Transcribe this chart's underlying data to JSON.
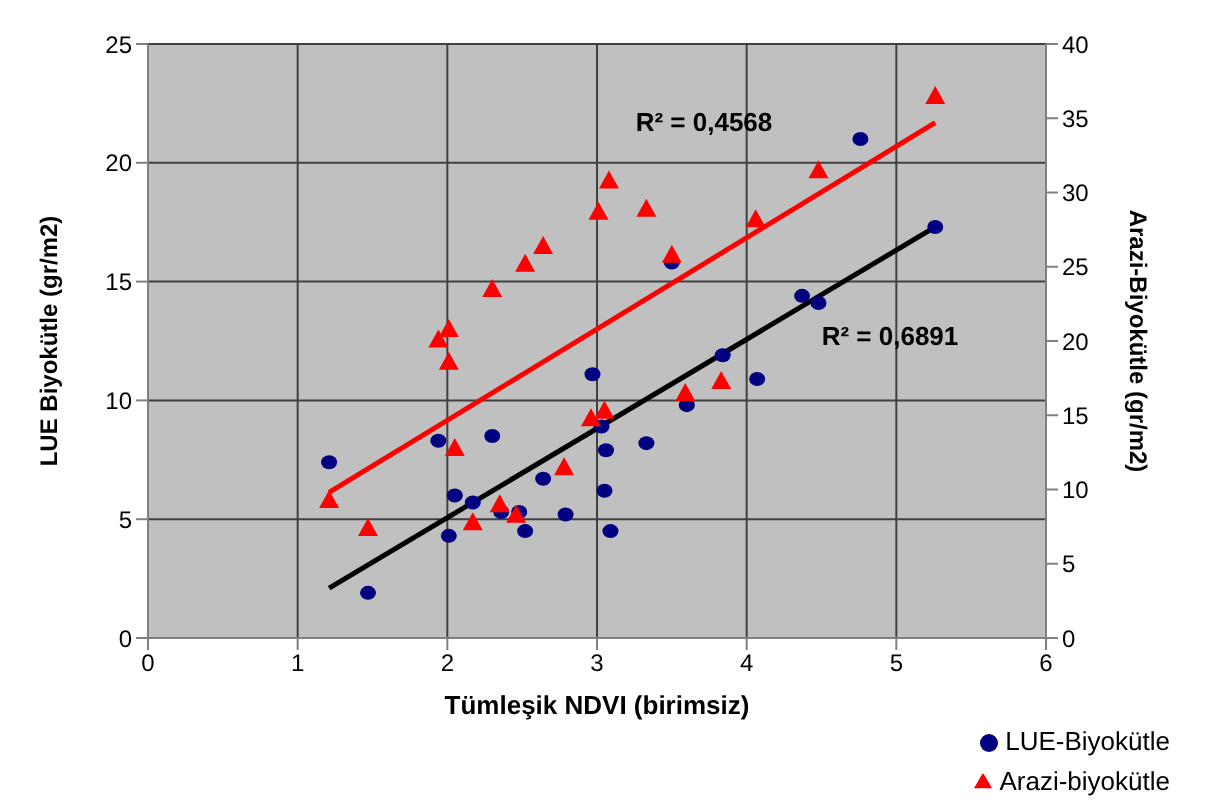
{
  "chart_data": {
    "type": "scatter",
    "xlabel": "Tümleşik NDVI (birimsiz)",
    "ylabel": "LUE Biyokütle (gr/m2)",
    "y2label": "Arazi-Biyokütle (gr/m2)",
    "xlim": [
      0,
      6
    ],
    "xticks": [
      0,
      1,
      2,
      3,
      4,
      5,
      6
    ],
    "ylim": [
      0,
      25
    ],
    "yticks": [
      0,
      5,
      10,
      15,
      20,
      25
    ],
    "y2lim": [
      0,
      40
    ],
    "y2ticks": [
      0,
      5,
      10,
      15,
      20,
      25,
      30,
      35,
      40
    ],
    "grid": true,
    "legend": "bottom right",
    "annotations": [
      "R² = 0,4568",
      "R² = 0,6891"
    ],
    "series": [
      {
        "name": "LUE-Biyokütle",
        "marker": "circle",
        "color": "#000080",
        "x": [
          1.21,
          1.47,
          1.94,
          2.01,
          2.05,
          2.17,
          2.3,
          2.36,
          2.48,
          2.52,
          2.64,
          2.79,
          2.97,
          3.03,
          3.06,
          3.05,
          3.09,
          3.33,
          3.5,
          3.6,
          3.84,
          4.07,
          4.37,
          4.48,
          4.76,
          5.26
        ],
        "values": [
          7.4,
          1.9,
          8.3,
          4.3,
          6.0,
          5.7,
          8.5,
          5.3,
          5.3,
          4.5,
          6.7,
          5.2,
          11.1,
          8.9,
          7.9,
          6.2,
          4.5,
          8.2,
          15.8,
          9.8,
          11.9,
          10.9,
          14.4,
          14.1,
          21.0,
          17.3
        ]
      },
      {
        "name": "Arazi-biyokütle",
        "marker": "triangle",
        "axis": "y2",
        "color": "#ff0000",
        "x": [
          1.21,
          1.47,
          1.94,
          2.01,
          2.01,
          2.05,
          2.17,
          2.3,
          2.35,
          2.46,
          2.52,
          2.64,
          2.78,
          2.96,
          3.01,
          3.05,
          3.08,
          3.33,
          3.5,
          3.59,
          3.83,
          4.06,
          4.48,
          5.26
        ],
        "values": [
          9.3,
          7.4,
          20.1,
          20.8,
          18.6,
          12.8,
          7.8,
          23.5,
          9.0,
          8.3,
          25.2,
          26.4,
          11.5,
          14.8,
          28.7,
          15.3,
          30.8,
          28.9,
          25.8,
          16.5,
          17.3,
          28.2,
          31.5,
          36.5
        ]
      },
      {
        "type": "line",
        "marker": "none",
        "color": "#000000",
        "x": [
          1.21,
          5.26
        ],
        "values": [
          2.1,
          17.3
        ]
      },
      {
        "type": "line",
        "marker": "none",
        "axis": "y2",
        "color": "#ff0000",
        "x": [
          1.21,
          5.26
        ],
        "values": [
          9.8,
          34.7
        ]
      }
    ]
  }
}
